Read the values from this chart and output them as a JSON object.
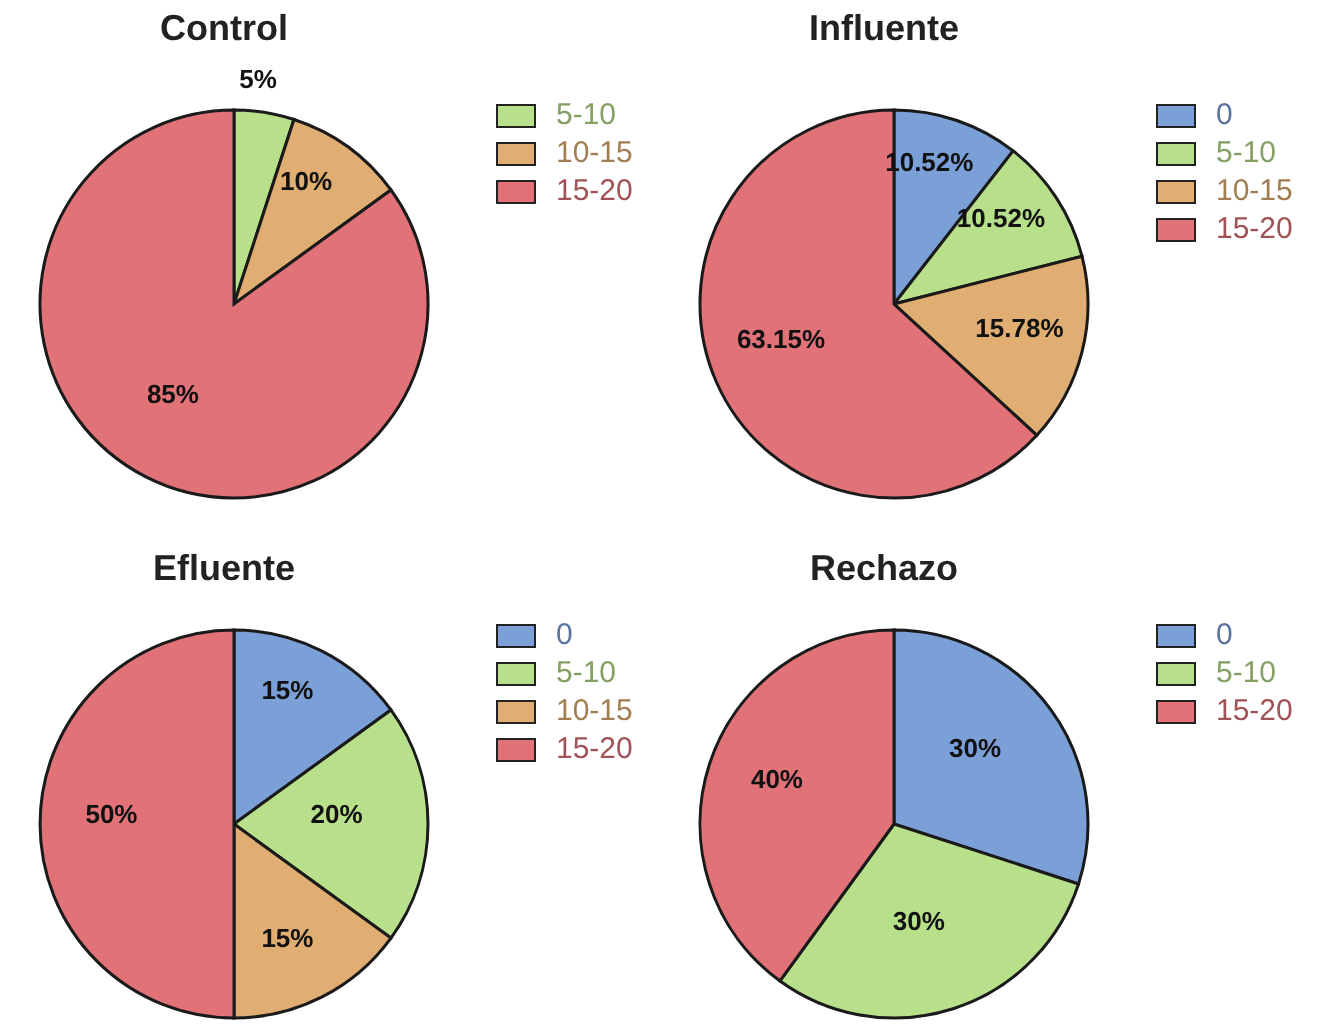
{
  "chart_data": [
    {
      "type": "pie",
      "title": "Control",
      "categories": [
        "5-10",
        "10-15",
        "15-20"
      ],
      "values": [
        5,
        10,
        85
      ],
      "colors": [
        "#b8e08a",
        "#e0ad72",
        "#e07278"
      ],
      "value_labels": [
        "5%",
        "10%",
        "85%"
      ],
      "legend": "top right"
    },
    {
      "type": "pie",
      "title": "Influente",
      "categories": [
        "0",
        "5-10",
        "10-15",
        "15-20"
      ],
      "values": [
        10.52,
        10.52,
        15.78,
        63.15
      ],
      "colors": [
        "#7ba0d8",
        "#b8e08a",
        "#e0ad72",
        "#e07278"
      ],
      "value_labels": [
        "10.52%",
        "10.52%",
        "15.78%",
        "63.15%"
      ],
      "legend": "top right"
    },
    {
      "type": "pie",
      "title": "Efluente",
      "categories": [
        "0",
        "5-10",
        "10-15",
        "15-20"
      ],
      "values": [
        15,
        20,
        15,
        50
      ],
      "colors": [
        "#7ba0d8",
        "#b8e08a",
        "#e0ad72",
        "#e07278"
      ],
      "value_labels": [
        "15%",
        "20%",
        "15%",
        "50%"
      ],
      "legend": "top right"
    },
    {
      "type": "pie",
      "title": "Rechazo",
      "categories": [
        "0",
        "5-10",
        "15-20"
      ],
      "values": [
        30,
        30,
        40
      ],
      "colors": [
        "#7ba0d8",
        "#b8e08a",
        "#e07278"
      ],
      "value_labels": [
        "30%",
        "30%",
        "40%"
      ],
      "legend": "top right"
    }
  ]
}
